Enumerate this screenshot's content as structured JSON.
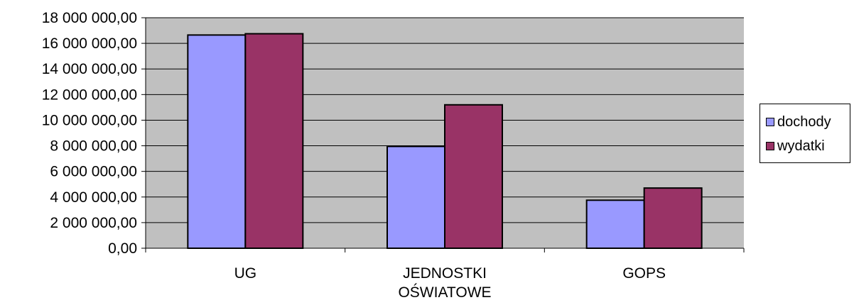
{
  "chart_data": {
    "type": "bar",
    "categories": [
      "UG",
      "JEDNOSTKI OŚWIATOWE",
      "GOPS"
    ],
    "category_lines": [
      [
        "UG"
      ],
      [
        "JEDNOSTKI",
        "OŚWIATOWE"
      ],
      [
        "GOPS"
      ]
    ],
    "series": [
      {
        "name": "dochody",
        "color": "#9999ff",
        "values": [
          16650000,
          7950000,
          3750000
        ]
      },
      {
        "name": "wydatki",
        "color": "#993366",
        "values": [
          16750000,
          11200000,
          4700000
        ]
      }
    ],
    "yticks": [
      0,
      2000000,
      4000000,
      6000000,
      8000000,
      10000000,
      12000000,
      14000000,
      16000000,
      18000000
    ],
    "ytick_labels": [
      "0,00",
      "2 000 000,00",
      "4 000 000,00",
      "6 000 000,00",
      "8 000 000,00",
      "10 000 000,00",
      "12 000 000,00",
      "14 000 000,00",
      "16 000 000,00",
      "18 000 000,00"
    ],
    "ylim": [
      0,
      18000000
    ],
    "plot_background": "#c0c0c0",
    "grid": true,
    "legend_position": "right",
    "title": "",
    "xlabel": "",
    "ylabel": ""
  }
}
